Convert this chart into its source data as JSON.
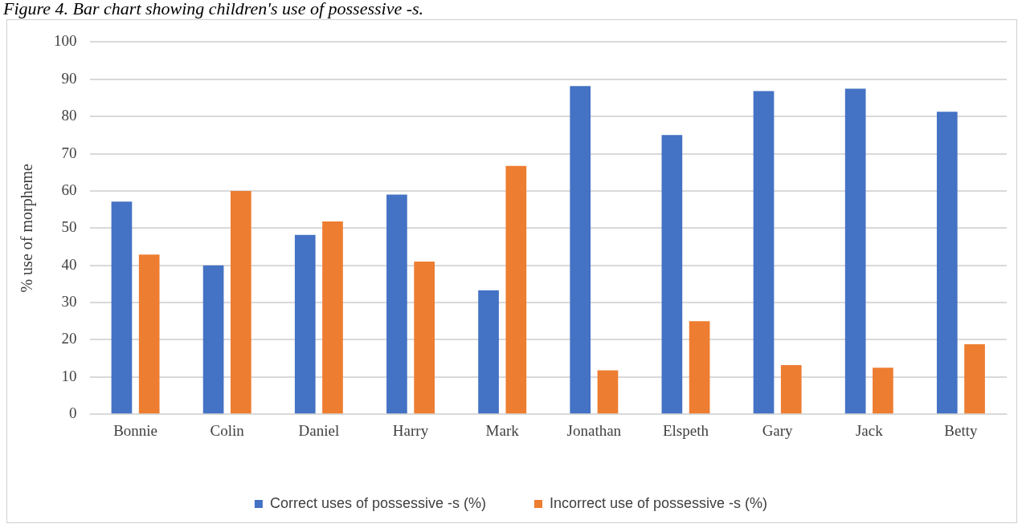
{
  "chart_data": {
    "type": "bar",
    "title": "Figure 4. Bar chart showing children's use of possessive -s.",
    "ylabel": "% use of morpheme",
    "categories": [
      "Bonnie",
      "Colin",
      "Daniel",
      "Harry",
      "Mark",
      "Jonathan",
      "Elspeth",
      "Gary",
      "Jack",
      "Betty"
    ],
    "series": [
      {
        "name": "Correct uses of possessive -s (%)",
        "color": "#4472c4",
        "values": [
          57.1,
          40,
          48.2,
          59,
          33.3,
          88.2,
          75,
          86.8,
          87.5,
          81.3
        ]
      },
      {
        "name": "Incorrect use of possessive -s (%)",
        "color": "#ed7d31",
        "values": [
          42.9,
          60,
          51.8,
          41,
          66.7,
          11.8,
          25,
          13.2,
          12.5,
          18.8
        ]
      }
    ],
    "ylim": [
      0,
      100
    ],
    "yticks": [
      0,
      10,
      20,
      30,
      40,
      50,
      60,
      70,
      80,
      90,
      100
    ],
    "grid": "y",
    "legend": "bottom"
  }
}
